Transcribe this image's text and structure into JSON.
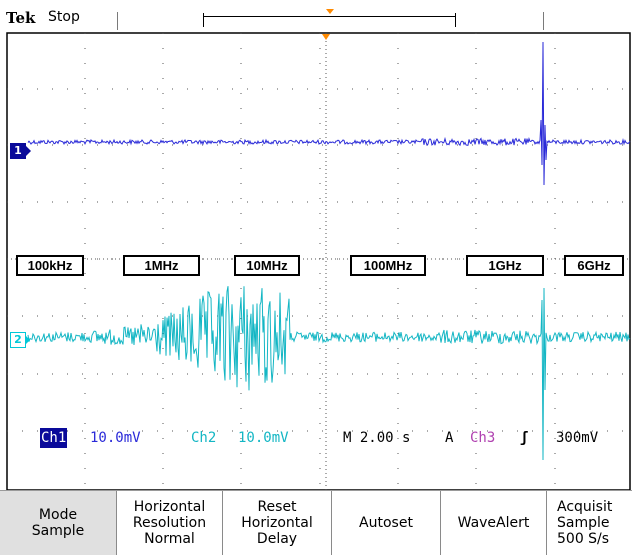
{
  "status": {
    "brand": "Tek",
    "acquisition_state": "Stop"
  },
  "colors": {
    "ch1": "#2a2ad8",
    "ch2": "#13b6c4",
    "ch3": "#b040b0",
    "trigger_marker": "#ff8a00"
  },
  "channel_markers": {
    "ch1": "1",
    "ch2": "2"
  },
  "frequency_labels": [
    "100kHz",
    "1MHz",
    "10MHz",
    "100MHz",
    "1GHz",
    "6GHz"
  ],
  "readout": {
    "ch1_label": "Ch1",
    "ch1_scale": "10.0mV",
    "ch2_label": "Ch2",
    "ch2_scale": "10.0mV",
    "timebase": "M 2.00 s",
    "trigger_mode": "A",
    "trigger_source": "Ch3",
    "trigger_slope": "ʃ",
    "trigger_level": "300mV"
  },
  "menu": [
    {
      "line1": "Mode",
      "line2": "Sample",
      "line3": ""
    },
    {
      "line1": "Horizontal",
      "line2": "Resolution",
      "line3": "Normal"
    },
    {
      "line1": "Reset",
      "line2": "Horizontal",
      "line3": "Delay"
    },
    {
      "line1": "Autoset",
      "line2": "",
      "line3": ""
    },
    {
      "line1": "WaveAlert",
      "line2": "",
      "line3": ""
    },
    {
      "line1": "Acquisit",
      "line2": "Sample",
      "line3": "500 S/s"
    }
  ]
}
